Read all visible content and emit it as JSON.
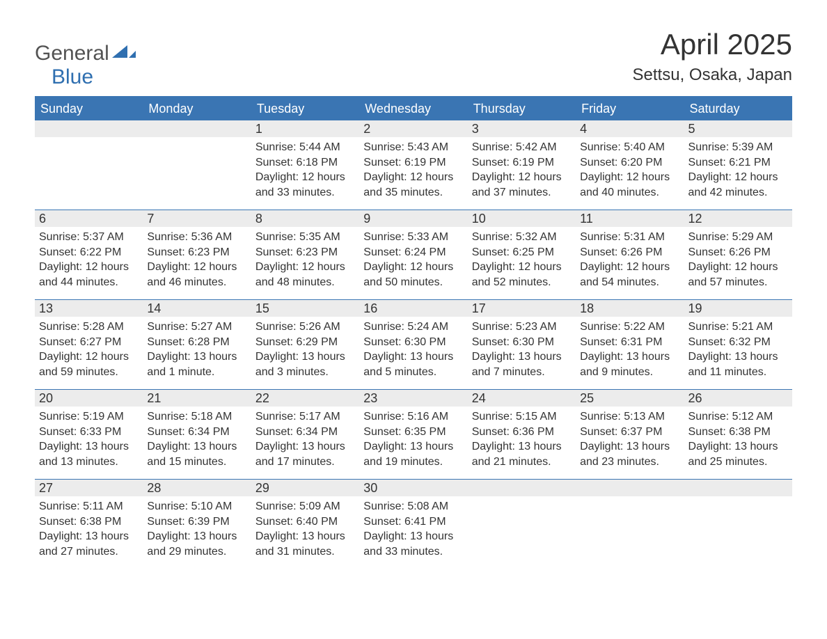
{
  "logo": {
    "text_gray": "General",
    "text_blue": "Blue",
    "shape_color": "#2f6fb0",
    "gray_color": "#535353",
    "blue_color": "#2f6fb0"
  },
  "header": {
    "month_title": "April 2025",
    "location": "Settsu, Osaka, Japan"
  },
  "colors": {
    "header_bg": "#3a75b3",
    "header_text": "#ffffff",
    "daybar_bg": "#ececec",
    "text": "#333333",
    "border": "#3a75b3",
    "page_bg": "#ffffff"
  },
  "day_headers": [
    "Sunday",
    "Monday",
    "Tuesday",
    "Wednesday",
    "Thursday",
    "Friday",
    "Saturday"
  ],
  "weeks": [
    [
      {
        "day": "",
        "sunrise": "",
        "sunset": "",
        "daylight": ""
      },
      {
        "day": "",
        "sunrise": "",
        "sunset": "",
        "daylight": ""
      },
      {
        "day": "1",
        "sunrise": "Sunrise: 5:44 AM",
        "sunset": "Sunset: 6:18 PM",
        "daylight": "Daylight: 12 hours and 33 minutes."
      },
      {
        "day": "2",
        "sunrise": "Sunrise: 5:43 AM",
        "sunset": "Sunset: 6:19 PM",
        "daylight": "Daylight: 12 hours and 35 minutes."
      },
      {
        "day": "3",
        "sunrise": "Sunrise: 5:42 AM",
        "sunset": "Sunset: 6:19 PM",
        "daylight": "Daylight: 12 hours and 37 minutes."
      },
      {
        "day": "4",
        "sunrise": "Sunrise: 5:40 AM",
        "sunset": "Sunset: 6:20 PM",
        "daylight": "Daylight: 12 hours and 40 minutes."
      },
      {
        "day": "5",
        "sunrise": "Sunrise: 5:39 AM",
        "sunset": "Sunset: 6:21 PM",
        "daylight": "Daylight: 12 hours and 42 minutes."
      }
    ],
    [
      {
        "day": "6",
        "sunrise": "Sunrise: 5:37 AM",
        "sunset": "Sunset: 6:22 PM",
        "daylight": "Daylight: 12 hours and 44 minutes."
      },
      {
        "day": "7",
        "sunrise": "Sunrise: 5:36 AM",
        "sunset": "Sunset: 6:23 PM",
        "daylight": "Daylight: 12 hours and 46 minutes."
      },
      {
        "day": "8",
        "sunrise": "Sunrise: 5:35 AM",
        "sunset": "Sunset: 6:23 PM",
        "daylight": "Daylight: 12 hours and 48 minutes."
      },
      {
        "day": "9",
        "sunrise": "Sunrise: 5:33 AM",
        "sunset": "Sunset: 6:24 PM",
        "daylight": "Daylight: 12 hours and 50 minutes."
      },
      {
        "day": "10",
        "sunrise": "Sunrise: 5:32 AM",
        "sunset": "Sunset: 6:25 PM",
        "daylight": "Daylight: 12 hours and 52 minutes."
      },
      {
        "day": "11",
        "sunrise": "Sunrise: 5:31 AM",
        "sunset": "Sunset: 6:26 PM",
        "daylight": "Daylight: 12 hours and 54 minutes."
      },
      {
        "day": "12",
        "sunrise": "Sunrise: 5:29 AM",
        "sunset": "Sunset: 6:26 PM",
        "daylight": "Daylight: 12 hours and 57 minutes."
      }
    ],
    [
      {
        "day": "13",
        "sunrise": "Sunrise: 5:28 AM",
        "sunset": "Sunset: 6:27 PM",
        "daylight": "Daylight: 12 hours and 59 minutes."
      },
      {
        "day": "14",
        "sunrise": "Sunrise: 5:27 AM",
        "sunset": "Sunset: 6:28 PM",
        "daylight": "Daylight: 13 hours and 1 minute."
      },
      {
        "day": "15",
        "sunrise": "Sunrise: 5:26 AM",
        "sunset": "Sunset: 6:29 PM",
        "daylight": "Daylight: 13 hours and 3 minutes."
      },
      {
        "day": "16",
        "sunrise": "Sunrise: 5:24 AM",
        "sunset": "Sunset: 6:30 PM",
        "daylight": "Daylight: 13 hours and 5 minutes."
      },
      {
        "day": "17",
        "sunrise": "Sunrise: 5:23 AM",
        "sunset": "Sunset: 6:30 PM",
        "daylight": "Daylight: 13 hours and 7 minutes."
      },
      {
        "day": "18",
        "sunrise": "Sunrise: 5:22 AM",
        "sunset": "Sunset: 6:31 PM",
        "daylight": "Daylight: 13 hours and 9 minutes."
      },
      {
        "day": "19",
        "sunrise": "Sunrise: 5:21 AM",
        "sunset": "Sunset: 6:32 PM",
        "daylight": "Daylight: 13 hours and 11 minutes."
      }
    ],
    [
      {
        "day": "20",
        "sunrise": "Sunrise: 5:19 AM",
        "sunset": "Sunset: 6:33 PM",
        "daylight": "Daylight: 13 hours and 13 minutes."
      },
      {
        "day": "21",
        "sunrise": "Sunrise: 5:18 AM",
        "sunset": "Sunset: 6:34 PM",
        "daylight": "Daylight: 13 hours and 15 minutes."
      },
      {
        "day": "22",
        "sunrise": "Sunrise: 5:17 AM",
        "sunset": "Sunset: 6:34 PM",
        "daylight": "Daylight: 13 hours and 17 minutes."
      },
      {
        "day": "23",
        "sunrise": "Sunrise: 5:16 AM",
        "sunset": "Sunset: 6:35 PM",
        "daylight": "Daylight: 13 hours and 19 minutes."
      },
      {
        "day": "24",
        "sunrise": "Sunrise: 5:15 AM",
        "sunset": "Sunset: 6:36 PM",
        "daylight": "Daylight: 13 hours and 21 minutes."
      },
      {
        "day": "25",
        "sunrise": "Sunrise: 5:13 AM",
        "sunset": "Sunset: 6:37 PM",
        "daylight": "Daylight: 13 hours and 23 minutes."
      },
      {
        "day": "26",
        "sunrise": "Sunrise: 5:12 AM",
        "sunset": "Sunset: 6:38 PM",
        "daylight": "Daylight: 13 hours and 25 minutes."
      }
    ],
    [
      {
        "day": "27",
        "sunrise": "Sunrise: 5:11 AM",
        "sunset": "Sunset: 6:38 PM",
        "daylight": "Daylight: 13 hours and 27 minutes."
      },
      {
        "day": "28",
        "sunrise": "Sunrise: 5:10 AM",
        "sunset": "Sunset: 6:39 PM",
        "daylight": "Daylight: 13 hours and 29 minutes."
      },
      {
        "day": "29",
        "sunrise": "Sunrise: 5:09 AM",
        "sunset": "Sunset: 6:40 PM",
        "daylight": "Daylight: 13 hours and 31 minutes."
      },
      {
        "day": "30",
        "sunrise": "Sunrise: 5:08 AM",
        "sunset": "Sunset: 6:41 PM",
        "daylight": "Daylight: 13 hours and 33 minutes."
      },
      {
        "day": "",
        "sunrise": "",
        "sunset": "",
        "daylight": ""
      },
      {
        "day": "",
        "sunrise": "",
        "sunset": "",
        "daylight": ""
      },
      {
        "day": "",
        "sunrise": "",
        "sunset": "",
        "daylight": ""
      }
    ]
  ]
}
